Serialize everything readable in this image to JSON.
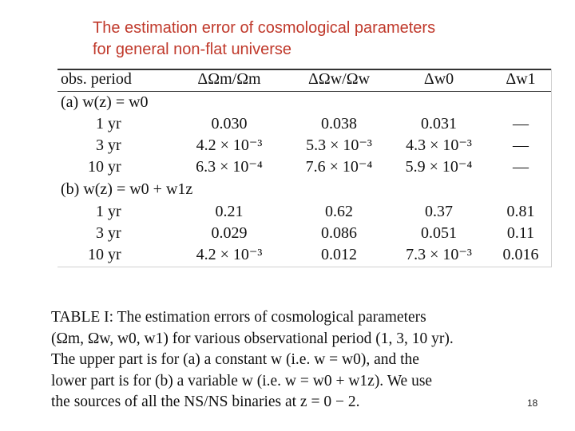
{
  "slide": {
    "title": "The estimation error of  cosmological parameters\nfor general non-flat universe",
    "page_number": "18"
  },
  "table": {
    "headers": [
      "obs.  period",
      "ΔΩm/Ωm",
      "ΔΩw/Ωw",
      "Δw0",
      "Δw1"
    ],
    "sections": [
      {
        "label": "(a)  w(z) = w0",
        "rows": [
          {
            "period": "1 yr",
            "omega_m": "0.030",
            "omega_w": "0.038",
            "w0": "0.031",
            "w1": "—"
          },
          {
            "period": "3 yr",
            "omega_m": "4.2 × 10⁻³",
            "omega_w": "5.3 × 10⁻³",
            "w0": "4.3 × 10⁻³",
            "w1": "—"
          },
          {
            "period": "10 yr",
            "omega_m": "6.3 × 10⁻⁴",
            "omega_w": "7.6 × 10⁻⁴",
            "w0": "5.9 × 10⁻⁴",
            "w1": "—"
          }
        ]
      },
      {
        "label": "(b)  w(z) = w0 + w1z",
        "rows": [
          {
            "period": "1 yr",
            "omega_m": "0.21",
            "omega_w": "0.62",
            "w0": "0.37",
            "w1": "0.81"
          },
          {
            "period": "3 yr",
            "omega_m": "0.029",
            "omega_w": "0.086",
            "w0": "0.051",
            "w1": "0.11"
          },
          {
            "period": "10 yr",
            "omega_m": "4.2 × 10⁻³",
            "omega_w": "0.012",
            "w0": "7.3 × 10⁻³",
            "w1": "0.016"
          }
        ]
      }
    ]
  },
  "caption": {
    "lines": [
      "TABLE I:  The estimation errors of cosmological parameters",
      "(Ωm, Ωw, w0, w1) for various observational period (1, 3, 10 yr).",
      "The upper part is for (a) a constant w (i.e. w = w0), and the",
      "lower part is for (b) a variable w (i.e. w = w0 + w1z). We use",
      "the sources of all the NS/NS binaries at z = 0 − 2."
    ]
  }
}
